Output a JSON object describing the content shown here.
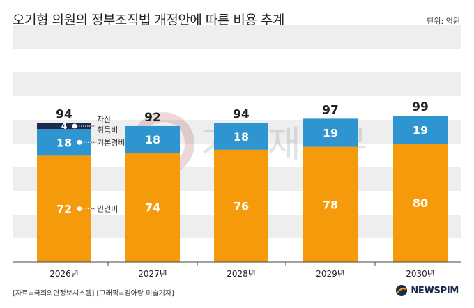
{
  "header": {
    "title": "오기형 의원의 정부조직법 개정안에 따른 비용 추계",
    "unit": "단위: 억원",
    "note": "*기획재정부를 재정경제부와 기획예산처로 분리하는 경우"
  },
  "footer": {
    "source": "[자료=국회의안정보시스템] [그래픽=김아랑 미술기자]",
    "logo": "NEWSPIM"
  },
  "watermark": "기획재정부",
  "colors": {
    "personnel": "#f59a0a",
    "basic": "#2f95d0",
    "asset": "#1b2a50",
    "band": "#eeeeee"
  },
  "chart_data": {
    "type": "bar",
    "stacked": true,
    "categories": [
      "2026년",
      "2027년",
      "2028년",
      "2029년",
      "2030년"
    ],
    "series": [
      {
        "name": "인건비",
        "values": [
          72,
          74,
          76,
          78,
          80
        ]
      },
      {
        "name": "기본경비",
        "values": [
          18,
          18,
          18,
          19,
          19
        ]
      },
      {
        "name": "자산 취득비",
        "values": [
          4,
          0,
          0,
          0,
          0
        ]
      }
    ],
    "totals": [
      94,
      92,
      94,
      97,
      99
    ],
    "ylim": [
      0,
      110
    ],
    "legend": "inline labels on first bar"
  }
}
